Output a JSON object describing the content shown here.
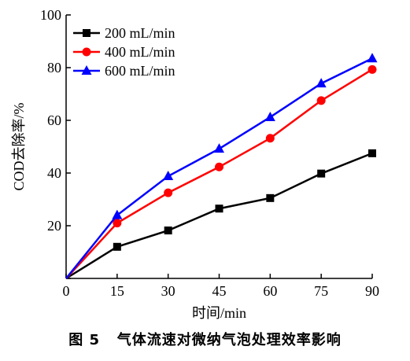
{
  "chart_data": {
    "type": "line",
    "x": [
      0,
      15,
      30,
      45,
      60,
      75,
      90
    ],
    "series": [
      {
        "name": "200 mL/min",
        "color": "#000000",
        "marker": "square",
        "values": [
          0,
          12,
          18.2,
          26.5,
          30.5,
          39.8,
          47.5
        ]
      },
      {
        "name": "400 mL/min",
        "color": "#ff0000",
        "marker": "circle",
        "values": [
          0,
          21,
          32.5,
          42.3,
          53.2,
          67.5,
          79.3
        ]
      },
      {
        "name": "600 mL/min",
        "color": "#0000ff",
        "marker": "triangle",
        "values": [
          0,
          24,
          38.8,
          49.2,
          61.2,
          74,
          83.5
        ]
      }
    ],
    "xlabel": "时间/min",
    "ylabel": "COD去除率/%",
    "xlim": [
      0,
      90
    ],
    "ylim": [
      0,
      100
    ],
    "xticks": [
      0,
      15,
      30,
      45,
      60,
      75,
      90
    ],
    "yticks": [
      0,
      20,
      40,
      60,
      80,
      100
    ],
    "xtick_labels": [
      "0",
      "15",
      "30",
      "45",
      "60",
      "75",
      "90"
    ],
    "ytick_labels": [
      "",
      "20",
      "40",
      "60",
      "80",
      "100"
    ],
    "grid": false,
    "legend_position": "top-left"
  },
  "caption": "图 5   气体流速对微纳气泡处理效率影响"
}
